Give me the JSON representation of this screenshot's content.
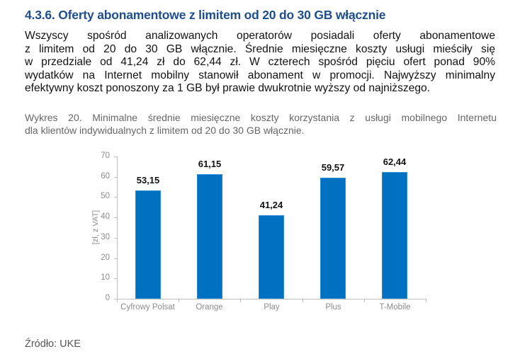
{
  "heading": "4.3.6. Oferty abonamentowe z limitem od 20 do 30 GB włącznie",
  "paragraph_lines": [
    "Wszyscy spośród analizowanych operatorów posiadali oferty abonamentowe",
    "z limitem od 20 do 30 GB włącznie. Średnie miesięczne koszty usługi mieściły się",
    "w przedziale od 41,24 zł do 62,44 zł. W czterech spośród pięciu ofert ponad 90%",
    "wydatków na Internet mobilny stanowił abonament w promocji. Najwyższy minimalny",
    "efektywny koszt ponoszony za 1 GB był prawie dwukrotnie wyższy od najniższego."
  ],
  "caption_lines": [
    "Wykres 20. Minimalne średnie miesięczne koszty korzystania z usługi mobilnego Internetu",
    "dla klientów indywidualnych z limitem od 20 do 30 GB włącznie."
  ],
  "source": "Źródło: UKE",
  "colors": {
    "bar": "#0070C0",
    "heading": "#1F4E8C"
  },
  "chart_data": {
    "type": "bar",
    "title": "Wykres 20. Minimalne średnie miesięczne koszty korzystania z usługi mobilnego Internetu dla klientów indywidualnych z limitem od 20 do 30 GB włącznie.",
    "categories": [
      "Cyfrowy Polsat",
      "Orange",
      "Play",
      "Plus",
      "T-Mobile"
    ],
    "values": [
      53.15,
      61.15,
      41.24,
      59.57,
      62.44
    ],
    "value_labels": [
      "53,15",
      "61,15",
      "41,24",
      "59,57",
      "62,44"
    ],
    "xlabel": "",
    "ylabel": "[zł, z VAT]",
    "ylim": [
      0,
      70
    ],
    "yticks": [
      0,
      10,
      20,
      30,
      40,
      50,
      60,
      70
    ],
    "grid": false,
    "legend": "none"
  }
}
